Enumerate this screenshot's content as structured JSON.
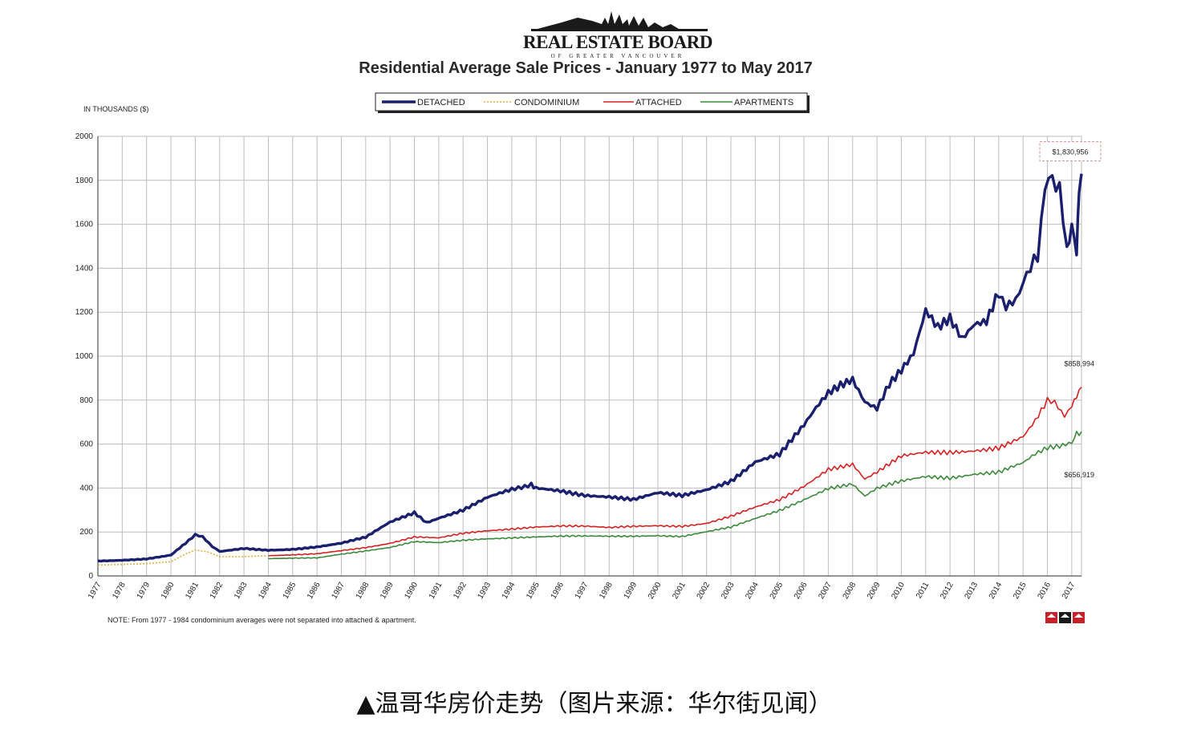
{
  "logo": {
    "name": "REAL ESTATE BOARD",
    "sub": "OF GREATER VANCOUVER"
  },
  "caption": "▲温哥华房价走势（图片来源：华尔街见闻）",
  "colors": {
    "detached": "#1a1f6e",
    "condominium": "#e0b040",
    "attached": "#d62020",
    "apartments": "#3a8a3a",
    "grid": "#bdbdbd",
    "annotation_box": "#d09090"
  },
  "chart_data": {
    "type": "line",
    "title": "Residential Average Sale Prices  -  January 1977 to May 2017",
    "ylabel": "IN THOUSANDS ($)",
    "xlabel": "",
    "ylim": [
      0,
      2000
    ],
    "yticks": [
      "0",
      "200",
      "400",
      "600",
      "800",
      "1000",
      "1200",
      "1400",
      "1600",
      "1800",
      "2000"
    ],
    "xlim": [
      1977,
      2017.4
    ],
    "xticks": [
      "1977",
      "1978",
      "1979",
      "1980",
      "1981",
      "1982",
      "1983",
      "1984",
      "1985",
      "1986",
      "1987",
      "1988",
      "1989",
      "1990",
      "1991",
      "1992",
      "1993",
      "1994",
      "1995",
      "1996",
      "1997",
      "1998",
      "1999",
      "2000",
      "2001",
      "2002",
      "2003",
      "2004",
      "2005",
      "2006",
      "2007",
      "2008",
      "2009",
      "2010",
      "2011",
      "2012",
      "2013",
      "2014",
      "2015",
      "2016",
      "2017"
    ],
    "grid": true,
    "legend_position": "top-center",
    "series": [
      {
        "name": "DETACHED",
        "style": "solid-thick",
        "points": [
          [
            1977,
            68
          ],
          [
            1978,
            72
          ],
          [
            1979,
            78
          ],
          [
            1980,
            95
          ],
          [
            1980.6,
            150
          ],
          [
            1981,
            185
          ],
          [
            1981.3,
            180
          ],
          [
            1981.7,
            135
          ],
          [
            1982,
            110
          ],
          [
            1983,
            125
          ],
          [
            1984,
            118
          ],
          [
            1985,
            122
          ],
          [
            1986,
            132
          ],
          [
            1987,
            148
          ],
          [
            1988,
            175
          ],
          [
            1989,
            245
          ],
          [
            1990,
            290
          ],
          [
            1990.5,
            245
          ],
          [
            1991,
            265
          ],
          [
            1992,
            300
          ],
          [
            1993,
            355
          ],
          [
            1994,
            390
          ],
          [
            1994.8,
            420
          ],
          [
            1995,
            400
          ],
          [
            1996,
            390
          ],
          [
            1997,
            370
          ],
          [
            1998,
            360
          ],
          [
            1999,
            345
          ],
          [
            2000,
            375
          ],
          [
            2001,
            365
          ],
          [
            2002,
            395
          ],
          [
            2003,
            435
          ],
          [
            2004,
            520
          ],
          [
            2005,
            550
          ],
          [
            2006,
            680
          ],
          [
            2006.5,
            760
          ],
          [
            2007,
            830
          ],
          [
            2007.5,
            870
          ],
          [
            2008,
            900
          ],
          [
            2008.5,
            800
          ],
          [
            2009,
            770
          ],
          [
            2009.5,
            880
          ],
          [
            2010,
            940
          ],
          [
            2010.5,
            1010
          ],
          [
            2011,
            1200
          ],
          [
            2011.5,
            1120
          ],
          [
            2012,
            1160
          ],
          [
            2012.5,
            1070
          ],
          [
            2013,
            1140
          ],
          [
            2013.5,
            1160
          ],
          [
            2014,
            1300
          ],
          [
            2014.3,
            1220
          ],
          [
            2014.7,
            1240
          ],
          [
            2015,
            1350
          ],
          [
            2015.3,
            1390
          ],
          [
            2015.6,
            1470
          ],
          [
            2015.9,
            1760
          ],
          [
            2016.2,
            1820
          ],
          [
            2016.5,
            1760
          ],
          [
            2016.8,
            1470
          ],
          [
            2017,
            1580
          ],
          [
            2017.2,
            1500
          ],
          [
            2017.3,
            1720
          ],
          [
            2017.4,
            1830
          ]
        ]
      },
      {
        "name": "CONDOMINIUM",
        "style": "dotted",
        "points": [
          [
            1977,
            50
          ],
          [
            1978,
            52
          ],
          [
            1979,
            56
          ],
          [
            1980,
            65
          ],
          [
            1980.6,
            100
          ],
          [
            1981,
            118
          ],
          [
            1981.5,
            110
          ],
          [
            1982,
            88
          ],
          [
            1983,
            88
          ],
          [
            1983.9,
            92
          ]
        ]
      },
      {
        "name": "ATTACHED",
        "style": "solid",
        "points": [
          [
            1984,
            92
          ],
          [
            1985,
            95
          ],
          [
            1986,
            100
          ],
          [
            1987,
            115
          ],
          [
            1988,
            130
          ],
          [
            1989,
            150
          ],
          [
            1990,
            178
          ],
          [
            1991,
            172
          ],
          [
            1992,
            192
          ],
          [
            1993,
            205
          ],
          [
            1994,
            215
          ],
          [
            1995,
            225
          ],
          [
            1996,
            228
          ],
          [
            1997,
            225
          ],
          [
            1998,
            218
          ],
          [
            1999,
            225
          ],
          [
            2000,
            230
          ],
          [
            2001,
            228
          ],
          [
            2002,
            240
          ],
          [
            2003,
            270
          ],
          [
            2004,
            310
          ],
          [
            2005,
            345
          ],
          [
            2006,
            410
          ],
          [
            2007,
            490
          ],
          [
            2008,
            510
          ],
          [
            2008.5,
            440
          ],
          [
            2009,
            470
          ],
          [
            2010,
            540
          ],
          [
            2011,
            560
          ],
          [
            2012,
            565
          ],
          [
            2013,
            575
          ],
          [
            2014,
            585
          ],
          [
            2015,
            630
          ],
          [
            2015.5,
            700
          ],
          [
            2016,
            790
          ],
          [
            2016.3,
            800
          ],
          [
            2016.7,
            730
          ],
          [
            2017,
            760
          ],
          [
            2017.2,
            820
          ],
          [
            2017.4,
            859
          ]
        ]
      },
      {
        "name": "APARTMENTS",
        "style": "solid",
        "points": [
          [
            1984,
            78
          ],
          [
            1985,
            80
          ],
          [
            1986,
            82
          ],
          [
            1987,
            100
          ],
          [
            1988,
            115
          ],
          [
            1989,
            130
          ],
          [
            1990,
            155
          ],
          [
            1991,
            150
          ],
          [
            1992,
            162
          ],
          [
            1993,
            170
          ],
          [
            1994,
            175
          ],
          [
            1995,
            178
          ],
          [
            1996,
            180
          ],
          [
            1997,
            180
          ],
          [
            1998,
            180
          ],
          [
            1999,
            182
          ],
          [
            2000,
            185
          ],
          [
            2001,
            180
          ],
          [
            2002,
            200
          ],
          [
            2003,
            220
          ],
          [
            2004,
            260
          ],
          [
            2005,
            300
          ],
          [
            2006,
            350
          ],
          [
            2007,
            400
          ],
          [
            2008,
            415
          ],
          [
            2008.5,
            360
          ],
          [
            2009,
            395
          ],
          [
            2010,
            430
          ],
          [
            2011,
            455
          ],
          [
            2012,
            450
          ],
          [
            2013,
            465
          ],
          [
            2014,
            470
          ],
          [
            2015,
            510
          ],
          [
            2015.5,
            550
          ],
          [
            2016,
            580
          ],
          [
            2016.5,
            590
          ],
          [
            2017,
            610
          ],
          [
            2017.2,
            640
          ],
          [
            2017.4,
            657
          ]
        ]
      }
    ],
    "annotations": [
      {
        "series": "DETACHED",
        "text": "$1,830,956",
        "boxed": true
      },
      {
        "series": "ATTACHED",
        "text": "$858,994"
      },
      {
        "series": "APARTMENTS",
        "text": "$656,919"
      }
    ],
    "note": "NOTE:  From 1977 - 1984 condominium averages were not separated into attached & apartment."
  }
}
